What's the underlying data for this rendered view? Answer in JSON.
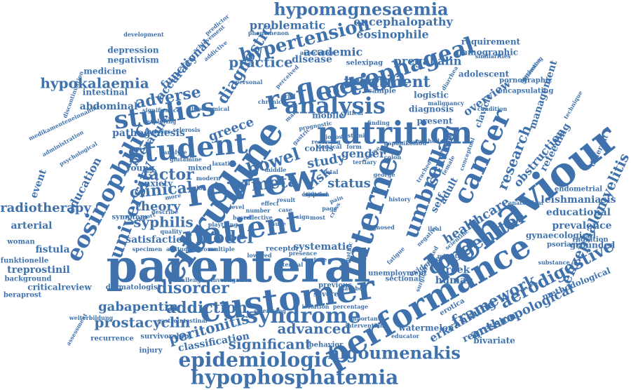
{
  "word_cloud": {
    "color": "#3f72ad",
    "words": [
      {
        "text": "parenteral",
        "weight": 10
      },
      {
        "text": "customer",
        "weight": 9
      },
      {
        "text": "review",
        "weight": 9
      },
      {
        "text": "citrulline",
        "weight": 9
      },
      {
        "text": "behaviour",
        "weight": 9
      },
      {
        "text": "performance",
        "weight": 8
      },
      {
        "text": "nutrition",
        "weight": 8
      },
      {
        "text": "patient",
        "weight": 8
      },
      {
        "text": "internet",
        "weight": 8
      },
      {
        "text": "student",
        "weight": 7
      },
      {
        "text": "reflection",
        "weight": 7
      },
      {
        "text": "analysis",
        "weight": 7
      },
      {
        "text": "studies",
        "weight": 7
      },
      {
        "text": "eosinophilic",
        "weight": 6
      },
      {
        "text": "cancer",
        "weight": 7
      },
      {
        "text": "oesophageal",
        "weight": 6
      },
      {
        "text": "umbrella",
        "weight": 6
      },
      {
        "text": "syndrome",
        "weight": 6
      },
      {
        "text": "epidemiologic",
        "weight": 6
      },
      {
        "text": "hypophosphatemia",
        "weight": 6
      },
      {
        "text": "hypomagnesaemia",
        "weight": 5
      },
      {
        "text": "hypertension",
        "weight": 5
      },
      {
        "text": "university",
        "weight": 5
      },
      {
        "text": "congenital",
        "weight": 5
      },
      {
        "text": "aerodigestive",
        "weight": 5
      },
      {
        "text": "framework",
        "weight": 5
      },
      {
        "text": "higoumenakis",
        "weight": 5
      },
      {
        "text": "treatment",
        "weight": 5
      },
      {
        "text": "diagnostic",
        "weight": 5
      },
      {
        "text": "enzephalomyelitis",
        "weight": 4
      },
      {
        "text": "bowel",
        "weight": 5
      },
      {
        "text": "model",
        "weight": 5
      },
      {
        "text": "factor",
        "weight": 5
      },
      {
        "text": "clinical",
        "weight": 5
      },
      {
        "text": "meta",
        "weight": 5
      },
      {
        "text": "study",
        "weight": 4
      },
      {
        "text": "risk",
        "weight": 4
      },
      {
        "text": "adverse",
        "weight": 5
      },
      {
        "text": "practice",
        "weight": 4
      },
      {
        "text": "addiction",
        "weight": 4
      },
      {
        "text": "disorder",
        "weight": 4
      },
      {
        "text": "advanced",
        "weight": 4
      },
      {
        "text": "peritonitis",
        "weight": 4
      },
      {
        "text": "prostacyclin",
        "weight": 4
      },
      {
        "text": "gabapentin",
        "weight": 4
      },
      {
        "text": "significant",
        "weight": 4
      },
      {
        "text": "survival",
        "weight": 4
      },
      {
        "text": "research",
        "weight": 4
      },
      {
        "text": "healthcare",
        "weight": 4
      },
      {
        "text": "anthropological",
        "weight": 4
      },
      {
        "text": "erkrankung",
        "weight": 4
      },
      {
        "text": "syphilis",
        "weight": 4
      },
      {
        "text": "theory",
        "weight": 4
      },
      {
        "text": "radiotherapy",
        "weight": 4
      },
      {
        "text": "hypokalaemia",
        "weight": 4
      },
      {
        "text": "greece",
        "weight": 4
      },
      {
        "text": "pregabalin",
        "weight": 3
      },
      {
        "text": "encephalopathy",
        "weight": 3
      },
      {
        "text": "eosinophile",
        "weight": 3
      },
      {
        "text": "problematic",
        "weight": 3
      },
      {
        "text": "academic",
        "weight": 3
      },
      {
        "text": "disease",
        "weight": 3
      },
      {
        "text": "overview",
        "weight": 3
      },
      {
        "text": "obstruction",
        "weight": 3
      },
      {
        "text": "refeeding",
        "weight": 3
      },
      {
        "text": "management",
        "weight": 3
      },
      {
        "text": "education",
        "weight": 3
      },
      {
        "text": "literature",
        "weight": 3
      },
      {
        "text": "accuracy",
        "weight": 3
      },
      {
        "text": "functional",
        "weight": 3
      },
      {
        "text": "pathogenesis",
        "weight": 3
      },
      {
        "text": "gender",
        "weight": 3
      },
      {
        "text": "status",
        "weight": 3
      },
      {
        "text": "self",
        "weight": 3
      },
      {
        "text": "adult",
        "weight": 3
      },
      {
        "text": "greek",
        "weight": 3
      },
      {
        "text": "human",
        "weight": 3
      },
      {
        "text": "arterial",
        "weight": 3
      },
      {
        "text": "satisfaction",
        "weight": 3
      },
      {
        "text": "fistula",
        "weight": 3
      },
      {
        "text": "treprostinil",
        "weight": 3
      },
      {
        "text": "criticalreview",
        "weight": 3
      },
      {
        "text": "systematic",
        "weight": 3
      },
      {
        "text": "colitis",
        "weight": 3
      },
      {
        "text": "event",
        "weight": 3
      },
      {
        "text": "leishmaniasis",
        "weight": 3
      },
      {
        "text": "prevalence",
        "weight": 3
      },
      {
        "text": "educational",
        "weight": 3
      },
      {
        "text": "grounded",
        "weight": 3
      },
      {
        "text": "regression",
        "weight": 3
      },
      {
        "text": "classification",
        "weight": 3
      },
      {
        "text": "watermelon",
        "weight": 3
      },
      {
        "text": "bivariate",
        "weight": 2
      },
      {
        "text": "methodological",
        "weight": 2
      },
      {
        "text": "gynaecological",
        "weight": 2
      },
      {
        "text": "abdominal",
        "weight": 2
      },
      {
        "text": "intestinal",
        "weight": 2
      },
      {
        "text": "medicine",
        "weight": 2
      },
      {
        "text": "negativism",
        "weight": 2
      },
      {
        "text": "depression",
        "weight": 2
      },
      {
        "text": "requirement",
        "weight": 2
      },
      {
        "text": "demographic",
        "weight": 2
      },
      {
        "text": "adolescent",
        "weight": 2
      },
      {
        "text": "diagnosis",
        "weight": 2
      },
      {
        "text": "logistic",
        "weight": 2
      },
      {
        "text": "present",
        "weight": 2
      },
      {
        "text": "clavicle",
        "weight": 2
      },
      {
        "text": "mobile",
        "weight": 2
      },
      {
        "text": "young",
        "weight": 2
      },
      {
        "text": "anxiety",
        "weight": 2
      },
      {
        "text": "woman",
        "weight": 2
      },
      {
        "text": "funktionelle",
        "weight": 2
      },
      {
        "text": "background",
        "weight": 2
      },
      {
        "text": "beraprost",
        "weight": 2
      },
      {
        "text": "dermatologist",
        "weight": 2
      },
      {
        "text": "behavior",
        "weight": 2
      },
      {
        "text": "evidence",
        "weight": 2
      },
      {
        "text": "psoriasis",
        "weight": 2
      },
      {
        "text": "radiation",
        "weight": 2
      },
      {
        "text": "endometrial",
        "weight": 2
      },
      {
        "text": "encapsulating",
        "weight": 2
      },
      {
        "text": "selexipag",
        "weight": 2
      },
      {
        "text": "sample",
        "weight": 2
      },
      {
        "text": "sectional",
        "weight": 2
      },
      {
        "text": "previous",
        "weight": 2
      },
      {
        "text": "severe",
        "weight": 2
      },
      {
        "text": "mixed",
        "weight": 2
      },
      {
        "text": "receptor",
        "weight": 2
      },
      {
        "text": "injury",
        "weight": 2
      },
      {
        "text": "survivorship",
        "weight": 2
      },
      {
        "text": "recurrence",
        "weight": 2
      },
      {
        "text": "unemployment",
        "weight": 2
      },
      {
        "text": "erotica",
        "weight": 2
      },
      {
        "text": "symptom",
        "weight": 2
      },
      {
        "text": "different",
        "weight": 2
      },
      {
        "text": "pornographic",
        "weight": 2
      },
      {
        "text": "outcome",
        "weight": 2
      },
      {
        "text": "multiple",
        "weight": 1
      },
      {
        "text": "attitude",
        "weight": 1
      },
      {
        "text": "specimen",
        "weight": 1
      },
      {
        "text": "plaything",
        "weight": 1
      },
      {
        "text": "modern",
        "weight": 1
      },
      {
        "text": "middle",
        "weight": 1
      },
      {
        "text": "total",
        "weight": 1
      },
      {
        "text": "trial",
        "weight": 1
      },
      {
        "text": "chronic",
        "weight": 1
      },
      {
        "text": "personal",
        "weight": 1
      },
      {
        "text": "biochemical",
        "weight": 1
      },
      {
        "text": "significance",
        "weight": 1
      },
      {
        "text": "exploring",
        "weight": 1
      },
      {
        "text": "theories",
        "weight": 1
      },
      {
        "text": "sclerosis",
        "weight": 1
      },
      {
        "text": "analyse",
        "weight": 1
      },
      {
        "text": "glutamine",
        "weight": 1
      },
      {
        "text": "laxative",
        "weight": 1
      },
      {
        "text": "cervical",
        "weight": 1
      },
      {
        "text": "critical",
        "weight": 1
      },
      {
        "text": "finding",
        "weight": 1
      },
      {
        "text": "method",
        "weight": 1
      },
      {
        "text": "severity",
        "weight": 1
      },
      {
        "text": "female",
        "weight": 1
      },
      {
        "text": "history",
        "weight": 1
      },
      {
        "text": "fatigue",
        "weight": 1
      },
      {
        "text": "negative",
        "weight": 1
      },
      {
        "text": "mimetic",
        "weight": 1
      },
      {
        "text": "substance",
        "weight": 1
      },
      {
        "text": "anatomical",
        "weight": 1
      },
      {
        "text": "condition",
        "weight": 1
      },
      {
        "text": "malignancy",
        "weight": 1
      },
      {
        "text": "marketing",
        "weight": 1
      },
      {
        "text": "similarities",
        "weight": 1
      },
      {
        "text": "association",
        "weight": 1
      },
      {
        "text": "phenomenon",
        "weight": 1
      },
      {
        "text": "addictive",
        "weight": 1
      },
      {
        "text": "achievement",
        "weight": 1
      },
      {
        "text": "predictor",
        "weight": 1
      },
      {
        "text": "development",
        "weight": 1
      },
      {
        "text": "discontinuation",
        "weight": 1
      },
      {
        "text": "medikamenteneinnahme",
        "weight": 1
      },
      {
        "text": "administration",
        "weight": 1
      },
      {
        "text": "psychological",
        "weight": 1
      },
      {
        "text": "assessment",
        "weight": 1
      },
      {
        "text": "weiterbildung",
        "weight": 1
      },
      {
        "text": "gastrointestinal",
        "weight": 1
      },
      {
        "text": "challenge",
        "weight": 1
      },
      {
        "text": "investigation",
        "weight": 1
      },
      {
        "text": "sclerosing",
        "weight": 1
      },
      {
        "text": "isolation",
        "weight": 1
      },
      {
        "text": "percentage",
        "weight": 1
      },
      {
        "text": "intervention",
        "weight": 1
      },
      {
        "text": "important",
        "weight": 1
      },
      {
        "text": "educator",
        "weight": 1
      },
      {
        "text": "placebo",
        "weight": 1
      },
      {
        "text": "neuropathic",
        "weight": 1
      },
      {
        "text": "potential",
        "weight": 1
      },
      {
        "text": "feature",
        "weight": 1
      },
      {
        "text": "quality",
        "weight": 1
      },
      {
        "text": "based",
        "weight": 1
      },
      {
        "text": "reflective",
        "weight": 1
      },
      {
        "text": "number",
        "weight": 1
      },
      {
        "text": "effect",
        "weight": 1
      },
      {
        "text": "cause",
        "weight": 1
      },
      {
        "text": "case",
        "weight": 1
      },
      {
        "text": "sign",
        "weight": 1
      },
      {
        "text": "most",
        "weight": 1
      },
      {
        "text": "page",
        "weight": 1
      },
      {
        "text": "pain",
        "weight": 1
      },
      {
        "text": "cross",
        "weight": 1
      },
      {
        "text": "result",
        "weight": 1
      },
      {
        "text": "level",
        "weight": 1
      },
      {
        "text": "darm",
        "weight": 1
      },
      {
        "text": "kalon",
        "weight": 1
      },
      {
        "text": "more",
        "weight": 1
      },
      {
        "text": "report",
        "weight": 1
      },
      {
        "text": "describe",
        "weight": 1
      },
      {
        "text": "perceived",
        "weight": 1
      },
      {
        "text": "receiving",
        "weight": 1
      },
      {
        "text": "dilemma",
        "weight": 1
      },
      {
        "text": "technique",
        "weight": 1
      },
      {
        "text": "diarrhea",
        "weight": 1
      },
      {
        "text": "papanikolaou",
        "weight": 1
      },
      {
        "text": "prognostic",
        "weight": 1
      },
      {
        "text": "conceptual",
        "weight": 1
      },
      {
        "text": "scientific",
        "weight": 1
      },
      {
        "text": "ileal",
        "weight": 1
      },
      {
        "text": "tracheo",
        "weight": 1
      },
      {
        "text": "correlated",
        "weight": 1
      },
      {
        "text": "presence",
        "weight": 1
      },
      {
        "text": "diagnosed",
        "weight": 1
      },
      {
        "text": "surgical",
        "weight": 1
      },
      {
        "text": "lowered",
        "weight": 1
      },
      {
        "text": "diopost",
        "weight": 1
      },
      {
        "text": "systemic",
        "weight": 1
      },
      {
        "text": "male",
        "weight": 1
      },
      {
        "text": "gastric",
        "weight": 1
      },
      {
        "text": "colon",
        "weight": 1
      },
      {
        "text": "form",
        "weight": 1
      },
      {
        "text": "course",
        "weight": 1
      },
      {
        "text": "tertiary",
        "weight": 1
      },
      {
        "text": "george",
        "weight": 1
      },
      {
        "text": "isolated",
        "weight": 1
      },
      {
        "text": "tracer",
        "weight": 1
      },
      {
        "text": "system",
        "weight": 1
      },
      {
        "text": "criterion",
        "weight": 1
      },
      {
        "text": "sepsis",
        "weight": 1
      }
    ]
  }
}
